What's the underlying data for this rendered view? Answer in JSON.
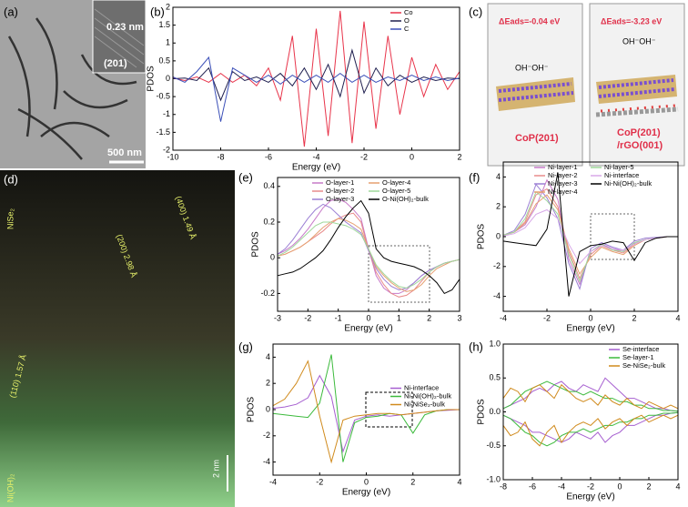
{
  "panel_a": {
    "label": "(a)",
    "spacing": "0.23 nm",
    "plane": "(201)",
    "scale": "500 nm"
  },
  "panel_c": {
    "label": "(c)",
    "energy_1": "ΔEads=-0.04 eV",
    "adsorbate_1": "OH⁻OH⁻",
    "surface_1": "CoP(201)",
    "energy_2": "ΔEads=-3.23 eV",
    "adsorbate_2": "OH⁻OH⁻",
    "surface_2": "CoP(201)",
    "surface_2b": "/rGO(001)"
  },
  "panel_d": {
    "label": "(d)",
    "top_phase": "NiSe₂",
    "spacing_1": "(400) 1.49 Å",
    "spacing_2": "(200) 2.98 Å",
    "spacing_3": "(110) 1.57 Å",
    "bottom_phase": "Ni(OH)₂",
    "scale": "2 nm"
  },
  "chart_data": [
    {
      "type": "line",
      "panel_label": "(b)",
      "x_label": "Energy (eV)",
      "y_label": "PDOS",
      "legend": "upper right",
      "x": [
        -10,
        -9.5,
        -9,
        -8.5,
        -8,
        -7.5,
        -7,
        -6.5,
        -6,
        -5.5,
        -5,
        -4.5,
        -4,
        -3.5,
        -3,
        -2.5,
        -2,
        -1.5,
        -1,
        -0.5,
        0,
        0.5,
        1,
        1.5,
        2
      ],
      "xlim": [
        -10,
        2
      ],
      "xticks": [
        -10,
        -8,
        -6,
        -4,
        -2,
        0,
        2
      ],
      "ylim": [
        -2,
        2
      ],
      "yticks": [
        -2,
        -1.5,
        -1,
        -0.5,
        0,
        0.5,
        1,
        1.5,
        2
      ],
      "series": [
        {
          "name": "Co",
          "color": "#e8344a",
          "values": [
            0.02,
            -0.05,
            0.05,
            -0.1,
            0.15,
            -0.1,
            0.1,
            -0.2,
            0.3,
            -0.6,
            1.2,
            -1.9,
            1.4,
            -1.6,
            1.9,
            -1.8,
            1.6,
            -1.4,
            1.2,
            -1.0,
            0.6,
            -0.5,
            0.4,
            -0.3,
            0.2
          ]
        },
        {
          "name": "O",
          "color": "#1f1f4f",
          "values": [
            0,
            0.02,
            -0.05,
            0.3,
            -0.6,
            0.2,
            -0.05,
            0.05,
            -0.1,
            0.15,
            -0.2,
            0.3,
            -0.3,
            0.4,
            -0.5,
            0.8,
            -0.4,
            0.3,
            -0.2,
            0.1,
            -0.1,
            0.05,
            -0.05,
            0.02,
            0
          ]
        },
        {
          "name": "C",
          "color": "#3b4fb8",
          "values": [
            0.05,
            -0.1,
            0.2,
            0.6,
            -1.2,
            0.3,
            0.1,
            -0.1,
            0.1,
            -0.15,
            0.1,
            -0.1,
            0.1,
            -0.1,
            0.15,
            -0.1,
            0.1,
            -0.1,
            0.05,
            -0.05,
            0.1,
            -0.05,
            0.05,
            -0.05,
            0.02
          ]
        }
      ]
    },
    {
      "type": "line",
      "panel_label": "(e)",
      "x_label": "Energy (eV)",
      "y_label": "PDOS",
      "legend": "upper center",
      "x": [
        -3,
        -2.75,
        -2.5,
        -2.25,
        -2,
        -1.75,
        -1.5,
        -1.25,
        -1,
        -0.75,
        -0.5,
        -0.25,
        0,
        0.25,
        0.5,
        0.75,
        1,
        1.25,
        1.5,
        1.75,
        2,
        2.25,
        2.5,
        2.75,
        3
      ],
      "xlim": [
        -3,
        3
      ],
      "xticks": [
        -3,
        -2,
        -1,
        0,
        1,
        2,
        3
      ],
      "ylim": [
        -0.3,
        0.45
      ],
      "yticks": [
        -0.2,
        0,
        0.2,
        0.4
      ],
      "series": [
        {
          "name": "O-layer-1",
          "color": "#c77ac9",
          "values": [
            0.02,
            0.04,
            0.07,
            0.11,
            0.16,
            0.22,
            0.28,
            0.32,
            0.33,
            0.31,
            0.27,
            0.22,
            0.05,
            -0.1,
            -0.17,
            -0.2,
            -0.2,
            -0.18,
            -0.14,
            -0.1,
            -0.07,
            -0.05,
            -0.03,
            -0.02,
            -0.01
          ]
        },
        {
          "name": "O-layer-2",
          "color": "#e88a8a",
          "values": [
            0.01,
            0.02,
            0.04,
            0.06,
            0.09,
            0.12,
            0.15,
            0.19,
            0.22,
            0.24,
            0.25,
            0.2,
            0.04,
            -0.08,
            -0.15,
            -0.2,
            -0.22,
            -0.21,
            -0.18,
            -0.13,
            -0.08,
            -0.05,
            -0.03,
            -0.02,
            -0.01
          ]
        },
        {
          "name": "O-layer-3",
          "color": "#9b7fd4",
          "values": [
            0.02,
            0.05,
            0.1,
            0.16,
            0.22,
            0.27,
            0.3,
            0.28,
            0.24,
            0.2,
            0.17,
            0.14,
            0.04,
            -0.06,
            -0.12,
            -0.16,
            -0.18,
            -0.17,
            -0.14,
            -0.1,
            -0.07,
            -0.05,
            -0.03,
            -0.02,
            -0.01
          ]
        },
        {
          "name": "O-layer-4",
          "color": "#e6a070",
          "values": [
            0.01,
            0.02,
            0.04,
            0.06,
            0.09,
            0.13,
            0.17,
            0.2,
            0.22,
            0.21,
            0.19,
            0.16,
            0.05,
            -0.05,
            -0.1,
            -0.14,
            -0.17,
            -0.19,
            -0.18,
            -0.15,
            -0.1,
            -0.06,
            -0.04,
            -0.02,
            -0.01
          ]
        },
        {
          "name": "O-layer-5",
          "color": "#9fd89a",
          "values": [
            0.01,
            0.03,
            0.06,
            0.1,
            0.14,
            0.18,
            0.2,
            0.2,
            0.19,
            0.18,
            0.16,
            0.13,
            0.05,
            -0.04,
            -0.09,
            -0.13,
            -0.16,
            -0.17,
            -0.15,
            -0.12,
            -0.08,
            -0.05,
            -0.03,
            -0.02,
            -0.01
          ]
        },
        {
          "name": "O-Ni(OH)₂-bulk",
          "color": "#000000",
          "values": [
            -0.1,
            -0.09,
            -0.08,
            -0.06,
            -0.03,
            0.0,
            0.04,
            0.1,
            0.17,
            0.23,
            0.28,
            0.32,
            0.25,
            0.05,
            0.0,
            -0.02,
            -0.03,
            -0.04,
            -0.05,
            -0.07,
            -0.1,
            -0.14,
            -0.2,
            -0.18,
            -0.12
          ]
        }
      ]
    },
    {
      "type": "line",
      "panel_label": "(f)",
      "x_label": "Energy (eV)",
      "y_label": "PDOS",
      "legend": "upper center",
      "x": [
        -4,
        -3.5,
        -3,
        -2.5,
        -2,
        -1.5,
        -1,
        -0.5,
        0,
        0.5,
        1,
        1.5,
        2,
        2.5,
        3,
        3.5,
        4
      ],
      "xlim": [
        -4,
        4
      ],
      "xticks": [
        -4,
        -2,
        0,
        2,
        4
      ],
      "ylim": [
        -5,
        5
      ],
      "yticks": [
        -4,
        -2,
        0,
        2,
        4
      ],
      "series": [
        {
          "name": "Ni-layer-1",
          "color": "#c77ac9",
          "values": [
            0.1,
            0.3,
            0.8,
            2.0,
            3.8,
            2.5,
            -1.5,
            -3.2,
            -1.0,
            -0.5,
            -0.8,
            -1.0,
            -0.4,
            -0.2,
            -0.1,
            0,
            0
          ]
        },
        {
          "name": "Ni-layer-2",
          "color": "#e88a8a",
          "values": [
            0.1,
            0.3,
            1.0,
            2.8,
            3.2,
            2.0,
            -1.0,
            -2.8,
            -1.2,
            -0.6,
            -0.9,
            -1.1,
            -0.5,
            -0.2,
            -0.1,
            0,
            0
          ]
        },
        {
          "name": "Ni-layer-3",
          "color": "#9b7fd4",
          "values": [
            0.1,
            0.4,
            1.5,
            3.5,
            2.6,
            1.2,
            -1.8,
            -3.5,
            -0.8,
            -0.4,
            -0.7,
            -0.9,
            -0.3,
            -0.1,
            -0.05,
            0,
            0
          ]
        },
        {
          "name": "Ni-layer-4",
          "color": "#e6a070",
          "values": [
            0.1,
            0.3,
            0.9,
            2.2,
            2.8,
            1.8,
            -0.8,
            -2.5,
            -1.4,
            -0.7,
            -1.0,
            -1.2,
            -0.6,
            -0.2,
            -0.1,
            0,
            0
          ]
        },
        {
          "name": "Ni-layer-5",
          "color": "#9fd89a",
          "values": [
            0.1,
            0.3,
            1.2,
            3.0,
            2.4,
            1.5,
            -1.2,
            -3.0,
            -1.0,
            -0.5,
            -0.9,
            -1.0,
            -0.4,
            -0.2,
            -0.1,
            0,
            0
          ]
        },
        {
          "name": "Ni-interface",
          "color": "#d8a8e8",
          "values": [
            0.05,
            0.2,
            0.6,
            1.5,
            1.8,
            1.2,
            -0.5,
            -1.8,
            -1.0,
            -0.6,
            -0.8,
            -0.9,
            -0.5,
            -0.2,
            -0.1,
            0,
            0
          ]
        },
        {
          "name": "Ni-Ni(OH)₂-bulk",
          "color": "#000000",
          "values": [
            -0.3,
            -0.4,
            -0.5,
            -0.6,
            0.5,
            4.3,
            -4.0,
            -1.0,
            -0.6,
            -0.5,
            -0.3,
            -0.4,
            -1.6,
            -0.4,
            -0.1,
            0,
            0
          ]
        }
      ]
    },
    {
      "type": "line",
      "panel_label": "(g)",
      "x_label": "Energy (eV)",
      "y_label": "PDOS",
      "legend": "center right",
      "x": [
        -4,
        -3.5,
        -3,
        -2.5,
        -2,
        -1.5,
        -1,
        -0.5,
        0,
        0.5,
        1,
        1.5,
        2,
        2.5,
        3,
        3.5,
        4
      ],
      "xlim": [
        -4,
        4
      ],
      "xticks": [
        -4,
        -2,
        0,
        2,
        4
      ],
      "ylim": [
        -5,
        5
      ],
      "yticks": [
        -4,
        -2,
        0,
        2,
        4
      ],
      "series": [
        {
          "name": "Ni-interface",
          "color": "#a65fd0",
          "values": [
            0.1,
            0.2,
            0.4,
            0.9,
            2.6,
            1.0,
            -3.2,
            -0.8,
            -0.5,
            -0.4,
            -0.5,
            -0.4,
            -0.3,
            -0.2,
            -0.1,
            -0.05,
            0
          ]
        },
        {
          "name": "Ni-Ni(OH)₂-bulk",
          "color": "#3cba3c",
          "values": [
            -0.3,
            -0.4,
            -0.5,
            -0.6,
            0.5,
            4.2,
            -4.0,
            -1.0,
            -0.6,
            -0.5,
            -0.3,
            -0.4,
            -1.8,
            -0.4,
            -0.1,
            0,
            0
          ]
        },
        {
          "name": "Ni-NiSe₂-bulk",
          "color": "#d08a1c",
          "values": [
            0.3,
            0.8,
            2.0,
            3.7,
            -0.5,
            -4.0,
            -0.8,
            -0.5,
            -0.4,
            -0.3,
            -0.3,
            -0.4,
            -0.3,
            -0.2,
            -0.1,
            0,
            0
          ]
        }
      ]
    },
    {
      "type": "line",
      "panel_label": "(h)",
      "x_label": "Energy (eV)",
      "y_label": "PDOS",
      "legend": "upper right",
      "x": [
        -8,
        -7.5,
        -7,
        -6.5,
        -6,
        -5.5,
        -5,
        -4.5,
        -4,
        -3.5,
        -3,
        -2.5,
        -2,
        -1.5,
        -1,
        -0.5,
        0,
        0.5,
        1,
        1.5,
        2,
        2.5,
        3,
        3.5,
        4
      ],
      "xlim": [
        -8,
        4
      ],
      "xticks": [
        -8,
        -6,
        -4,
        -2,
        0,
        2,
        4
      ],
      "ylim": [
        -1,
        1
      ],
      "yticks": [
        {
          "value": -1,
          "label": "-1.0"
        },
        -0.5,
        {
          "value": 0,
          "label": "0.0"
        },
        0.5,
        {
          "value": 1,
          "label": "1.0"
        }
      ],
      "series": [
        {
          "name": "Se-interface",
          "color": "#a65fd0",
          "values": [
            0.05,
            0.1,
            0.15,
            0.2,
            0.3,
            0.35,
            0.3,
            0.4,
            0.45,
            0.35,
            0.3,
            0.4,
            0.35,
            0.3,
            0.5,
            0.4,
            0.3,
            0.2,
            0.2,
            0.15,
            0.1,
            0.05,
            0.05,
            0.02,
            0.01
          ],
          "down": [
            -0.05,
            -0.1,
            -0.15,
            -0.2,
            -0.3,
            -0.3,
            -0.35,
            -0.4,
            -0.45,
            -0.4,
            -0.3,
            -0.35,
            -0.4,
            -0.3,
            -0.45,
            -0.35,
            -0.3,
            -0.2,
            -0.2,
            -0.15,
            -0.1,
            -0.05,
            -0.05,
            -0.02,
            -0.01
          ]
        },
        {
          "name": "Se-layer-1",
          "color": "#3cba3c",
          "values": [
            0.05,
            0.1,
            0.2,
            0.3,
            0.35,
            0.4,
            0.45,
            0.4,
            0.35,
            0.3,
            0.3,
            0.25,
            0.3,
            0.25,
            0.2,
            0.2,
            0.15,
            0.15,
            0.1,
            0.1,
            0.05,
            0.05,
            0.02,
            0.02,
            0.01
          ],
          "down": [
            -0.05,
            -0.1,
            -0.2,
            -0.3,
            -0.35,
            -0.45,
            -0.5,
            -0.45,
            -0.35,
            -0.3,
            -0.3,
            -0.25,
            -0.3,
            -0.25,
            -0.2,
            -0.2,
            -0.15,
            -0.15,
            -0.1,
            -0.1,
            -0.05,
            -0.05,
            -0.02,
            -0.02,
            -0.01
          ]
        },
        {
          "name": "Se-NiSe₂-bulk",
          "color": "#d08a1c",
          "values": [
            0.2,
            0.35,
            0.3,
            0.15,
            0.35,
            0.4,
            0.3,
            0.2,
            0.4,
            0.3,
            0.2,
            0.15,
            0.2,
            0.1,
            0.25,
            0.15,
            0.1,
            0.2,
            0.1,
            0.05,
            0.15,
            0.1,
            0.05,
            0.1,
            0.05
          ],
          "down": [
            -0.2,
            -0.35,
            -0.3,
            -0.15,
            -0.4,
            -0.5,
            -0.3,
            -0.2,
            -0.45,
            -0.3,
            -0.2,
            -0.15,
            -0.2,
            -0.1,
            -0.25,
            -0.15,
            -0.1,
            -0.2,
            -0.1,
            -0.05,
            -0.15,
            -0.1,
            -0.05,
            -0.1,
            -0.05
          ]
        }
      ]
    }
  ]
}
